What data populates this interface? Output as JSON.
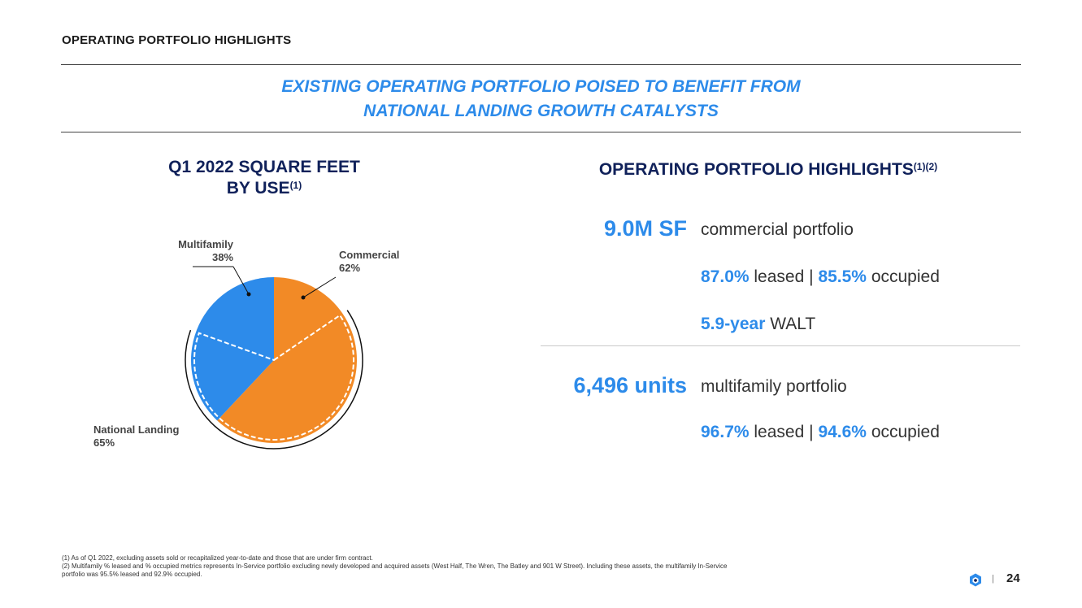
{
  "header": {
    "title": "OPERATING PORTFOLIO HIGHLIGHTS"
  },
  "tagline": {
    "line1": "EXISTING OPERATING PORTFOLIO POISED TO BENEFIT FROM",
    "line2": "NATIONAL LANDING GROWTH CATALYSTS"
  },
  "chart_section": {
    "title_line1": "Q1 2022 SQUARE FEET",
    "title_line2": "BY USE",
    "title_note": "(1)"
  },
  "chart_data": {
    "type": "pie",
    "title": "Q1 2022 SQUARE FEET BY USE",
    "slices": [
      {
        "label": "Commercial",
        "value": 62,
        "value_label": "62%",
        "color": "#f28a26"
      },
      {
        "label": "Multifamily",
        "value": 38,
        "value_label": "38%",
        "color": "#2d8bea"
      }
    ],
    "overlay": {
      "label": "National Landing",
      "value": 65,
      "value_label": "65%",
      "style": "dashed white arc with black outer arc"
    }
  },
  "highlights": {
    "title": "OPERATING PORTFOLIO HIGHLIGHTS",
    "title_note": "(1)(2)",
    "commercial": {
      "big": "9.0M SF",
      "desc": "commercial portfolio",
      "leased": "87.0%",
      "leased_word": "leased",
      "separator": "|",
      "occupied": "85.5%",
      "occupied_word": "occupied",
      "walt": "5.9-year",
      "walt_word": "WALT"
    },
    "multifamily": {
      "big": "6,496 units",
      "desc": "multifamily portfolio",
      "leased": "96.7%",
      "leased_word": "leased",
      "separator": "|",
      "occupied": "94.6%",
      "occupied_word": "occupied"
    }
  },
  "footnotes": {
    "line1": "(1) As of Q1 2022, excluding assets sold or recapitalized year-to-date and those that are under firm contract.",
    "line2": "(2) Multifamily % leased and % occupied metrics represents In-Service portfolio excluding newly developed and acquired assets (West Half, The Wren, The Batley and 901 W Street). Including these assets, the multifamily In-Service",
    "line3": "portfolio was 95.5% leased and 92.9% occupied."
  },
  "footer": {
    "separator": "|",
    "page_number": "24",
    "logo_icon": "hexagon-logo-icon"
  },
  "colors": {
    "accent_blue": "#2d8bea",
    "accent_orange": "#f28a26",
    "navy": "#10215a"
  }
}
